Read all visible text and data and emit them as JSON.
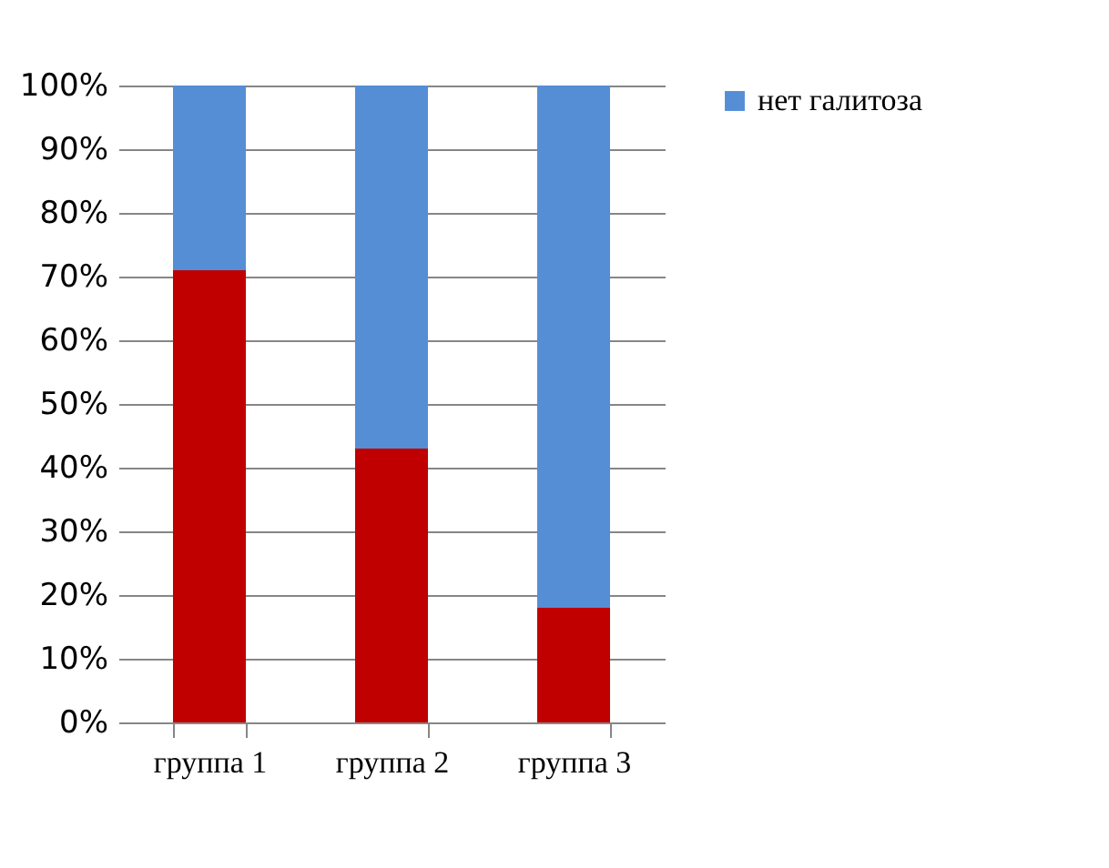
{
  "chart_data": {
    "type": "bar",
    "stacked": true,
    "categories": [
      "группа 1",
      "группа 2",
      "группа 3"
    ],
    "series": [
      {
        "color": "#c00000",
        "values": [
          71,
          43,
          18
        ]
      },
      {
        "name": "нет галитоза",
        "color": "#558ed5",
        "values": [
          29,
          57,
          82
        ]
      }
    ],
    "ylim": [
      0,
      100
    ],
    "yticks": [
      {
        "value": 0,
        "label": "0%"
      },
      {
        "value": 10,
        "label": "10%"
      },
      {
        "value": 20,
        "label": "20%"
      },
      {
        "value": 30,
        "label": "30%"
      },
      {
        "value": 40,
        "label": "40%"
      },
      {
        "value": 50,
        "label": "50%"
      },
      {
        "value": 60,
        "label": "60%"
      },
      {
        "value": 70,
        "label": "70%"
      },
      {
        "value": 80,
        "label": "80%"
      },
      {
        "value": 90,
        "label": "90%"
      },
      {
        "value": 100,
        "label": "100%"
      }
    ],
    "grid": "y",
    "legend": "right"
  }
}
